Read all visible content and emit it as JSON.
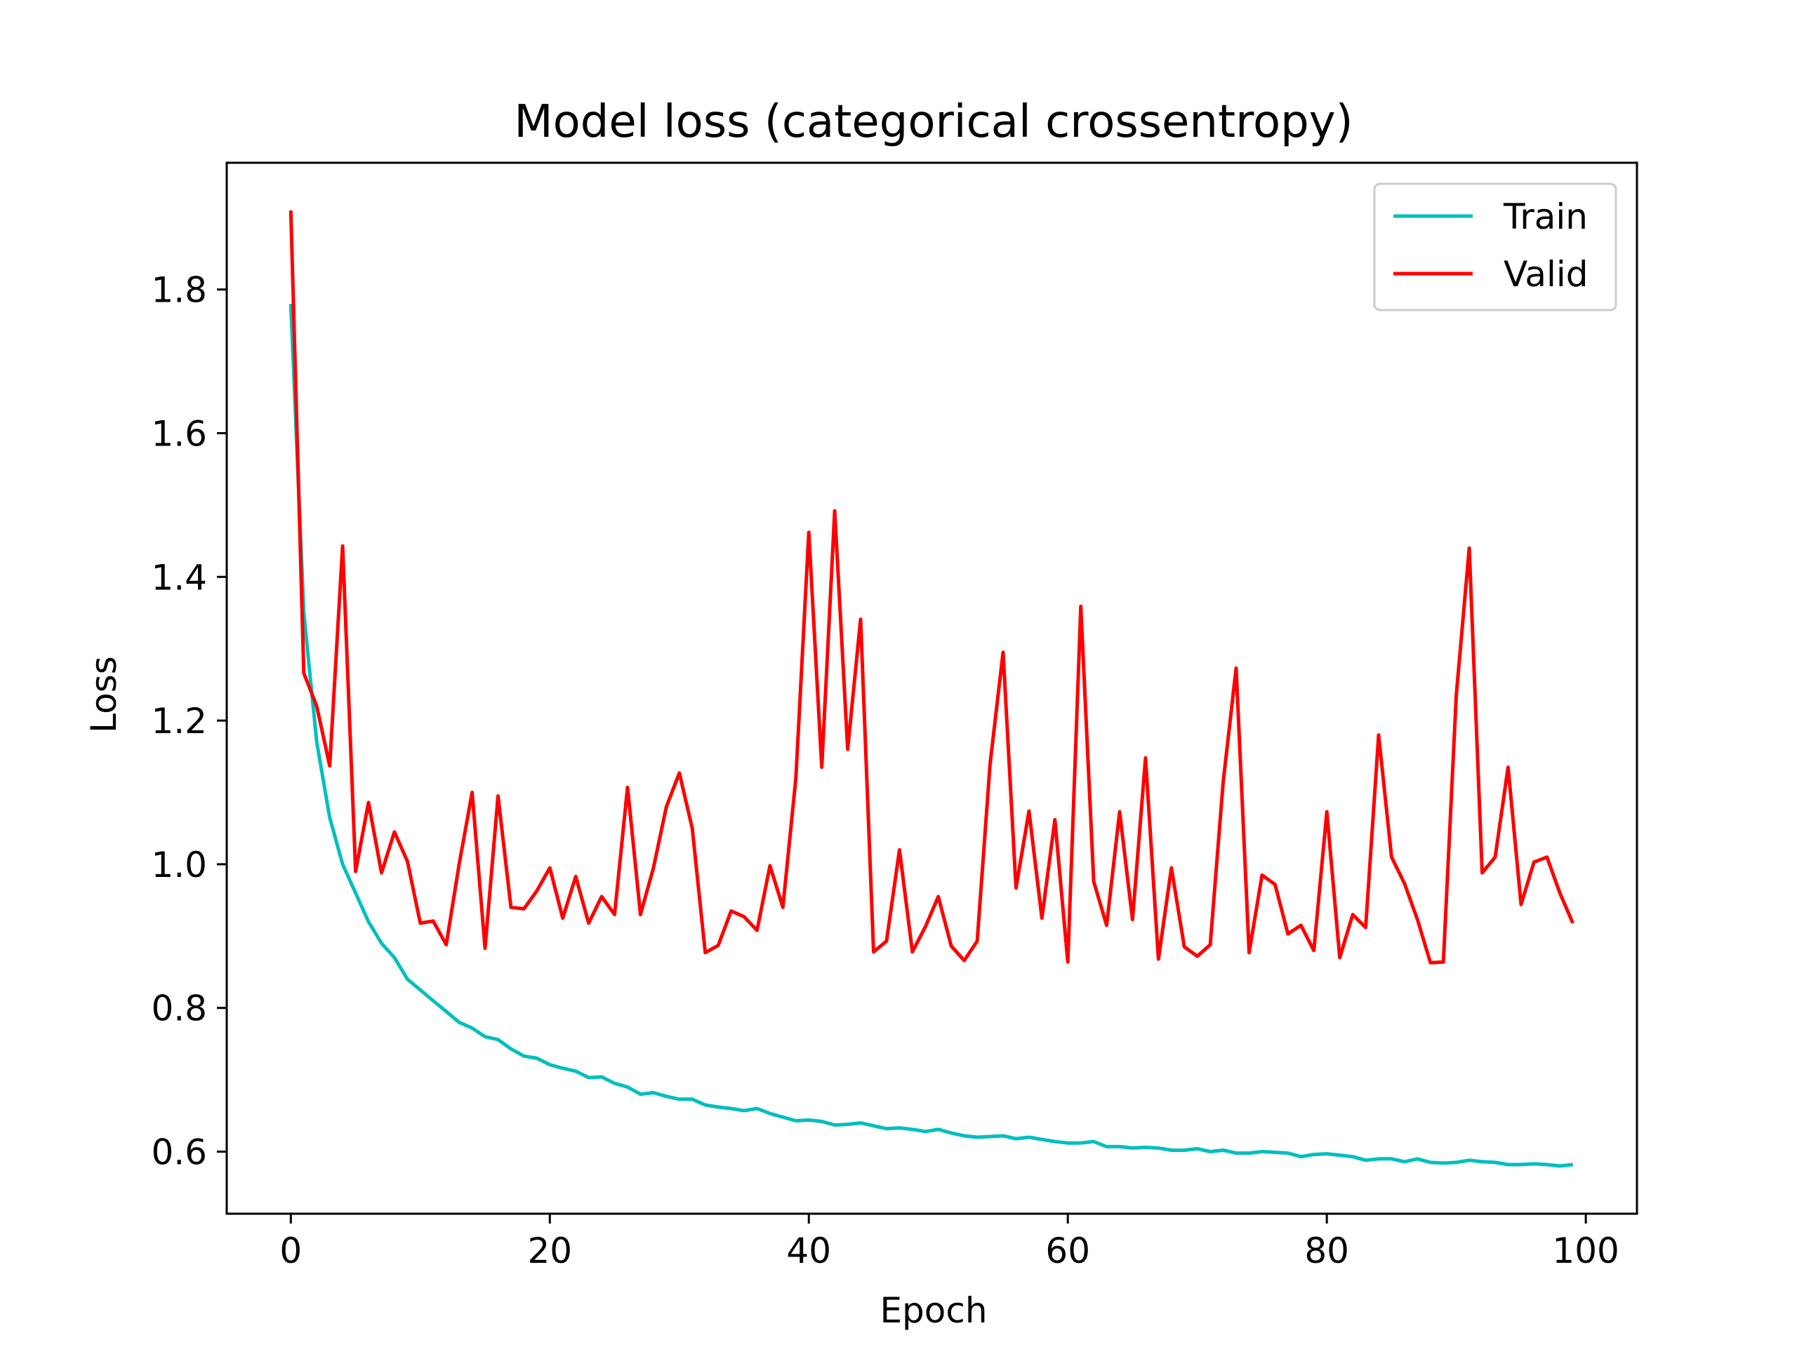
{
  "chart_data": {
    "type": "line",
    "title": "Model loss (categorical crossentropy)",
    "xlabel": "Epoch",
    "ylabel": "Loss",
    "xlim": [
      -4.95,
      103.95
    ],
    "ylim": [
      0.5136,
      1.9764
    ],
    "xticks": [
      0,
      20,
      40,
      60,
      80,
      100
    ],
    "yticks": [
      0.6,
      0.8,
      1.0,
      1.2,
      1.4,
      1.6,
      1.8
    ],
    "xtick_labels": [
      "0",
      "20",
      "40",
      "60",
      "80",
      "100"
    ],
    "ytick_labels": [
      "0.6",
      "0.8",
      "1.0",
      "1.2",
      "1.4",
      "1.6",
      "1.8"
    ],
    "grid": false,
    "legend": {
      "position": "top-right",
      "entries": [
        "Train",
        "Valid"
      ]
    },
    "x": [
      0,
      1,
      2,
      3,
      4,
      5,
      6,
      7,
      8,
      9,
      10,
      11,
      12,
      13,
      14,
      15,
      16,
      17,
      18,
      19,
      20,
      21,
      22,
      23,
      24,
      25,
      26,
      27,
      28,
      29,
      30,
      31,
      32,
      33,
      34,
      35,
      36,
      37,
      38,
      39,
      40,
      41,
      42,
      43,
      44,
      45,
      46,
      47,
      48,
      49,
      50,
      51,
      52,
      53,
      54,
      55,
      56,
      57,
      58,
      59,
      60,
      61,
      62,
      63,
      64,
      65,
      66,
      67,
      68,
      69,
      70,
      71,
      72,
      73,
      74,
      75,
      76,
      77,
      78,
      79,
      80,
      81,
      82,
      83,
      84,
      85,
      86,
      87,
      88,
      89,
      90,
      91,
      92,
      93,
      94,
      95,
      96,
      97,
      98,
      99
    ],
    "series": [
      {
        "name": "Train",
        "color": "#00bfbf",
        "values": [
          1.78,
          1.35,
          1.17,
          1.065,
          1.0,
          0.96,
          0.92,
          0.89,
          0.87,
          0.84,
          0.825,
          0.81,
          0.795,
          0.78,
          0.772,
          0.76,
          0.756,
          0.743,
          0.733,
          0.73,
          0.721,
          0.716,
          0.712,
          0.703,
          0.704,
          0.695,
          0.69,
          0.68,
          0.682,
          0.677,
          0.673,
          0.673,
          0.665,
          0.662,
          0.66,
          0.657,
          0.66,
          0.653,
          0.648,
          0.643,
          0.644,
          0.642,
          0.637,
          0.638,
          0.64,
          0.636,
          0.632,
          0.633,
          0.631,
          0.628,
          0.631,
          0.626,
          0.622,
          0.62,
          0.621,
          0.622,
          0.618,
          0.62,
          0.617,
          0.614,
          0.612,
          0.612,
          0.614,
          0.607,
          0.607,
          0.605,
          0.606,
          0.605,
          0.602,
          0.602,
          0.604,
          0.6,
          0.602,
          0.598,
          0.598,
          0.6,
          0.599,
          0.598,
          0.593,
          0.596,
          0.597,
          0.595,
          0.593,
          0.588,
          0.59,
          0.59,
          0.586,
          0.59,
          0.585,
          0.584,
          0.585,
          0.588,
          0.586,
          0.585,
          0.582,
          0.582,
          0.583,
          0.582,
          0.58,
          0.582
        ]
      },
      {
        "name": "Valid",
        "color": "#ff0000",
        "values": [
          1.91,
          1.266,
          1.22,
          1.137,
          1.443,
          0.99,
          1.086,
          0.988,
          1.045,
          1.004,
          0.918,
          0.921,
          0.888,
          1.0,
          1.1,
          0.883,
          1.095,
          0.94,
          0.938,
          0.963,
          0.995,
          0.925,
          0.983,
          0.918,
          0.955,
          0.93,
          1.107,
          0.93,
          0.995,
          1.08,
          1.127,
          1.05,
          0.877,
          0.887,
          0.935,
          0.927,
          0.908,
          0.998,
          0.94,
          1.12,
          1.462,
          1.135,
          1.492,
          1.16,
          1.341,
          0.878,
          0.893,
          1.02,
          0.878,
          0.913,
          0.955,
          0.886,
          0.866,
          0.893,
          1.14,
          1.295,
          0.967,
          1.074,
          0.925,
          1.062,
          0.864,
          1.359,
          0.976,
          0.915,
          1.073,
          0.923,
          1.148,
          0.868,
          0.995,
          0.885,
          0.872,
          0.888,
          1.115,
          1.273,
          0.877,
          0.985,
          0.972,
          0.903,
          0.915,
          0.88,
          1.073,
          0.87,
          0.93,
          0.912,
          1.18,
          1.01,
          0.973,
          0.923,
          0.863,
          0.864,
          1.235,
          1.44,
          0.988,
          1.01,
          1.135,
          0.944,
          1.003,
          1.01,
          0.96,
          0.918
        ]
      }
    ]
  }
}
